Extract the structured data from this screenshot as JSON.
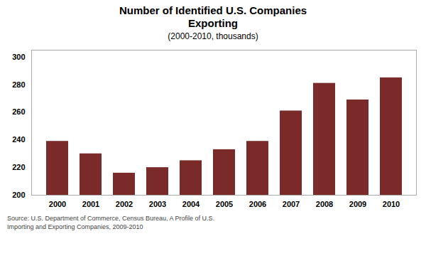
{
  "chart_data": {
    "type": "bar",
    "title": "Number of Identified U.S. Companies\nExporting",
    "subtitle": "(2000-2010, thousands)",
    "caption": "Source: U.S. Department of Commerce, Census Bureau, A Profile of U.S.\nImporting and Exporting Companies, 2009-2010",
    "categories": [
      "2000",
      "2001",
      "2002",
      "2003",
      "2004",
      "2005",
      "2006",
      "2007",
      "2008",
      "2009",
      "2010"
    ],
    "values": [
      239,
      230,
      216,
      220,
      225,
      233,
      239,
      261,
      281,
      269,
      285
    ],
    "color": "#7B2A2A",
    "ylim": [
      200,
      305
    ],
    "yticks": [
      200,
      220,
      240,
      260,
      280,
      300
    ],
    "grid": false
  }
}
